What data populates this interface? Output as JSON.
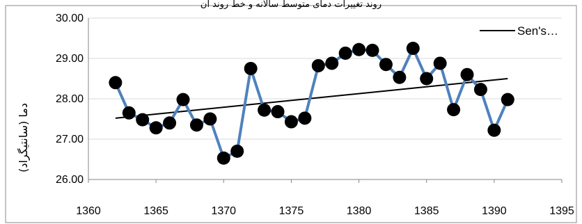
{
  "chart_data": {
    "type": "line",
    "title": "ﺭﻭﻧﺪ ﺗﻐﯿﯿﺮﺍﺕ ﺩﻣﺎی ﻣﺘﻮﺳﻂ ﺳﺎﻻﻧﻪ ﻭ ﺧﻂ ﺭﻭﻧﺪ ﺁﻥ",
    "xlabel": "",
    "ylabel": "دما (سانتیگراد)",
    "xlim": [
      1360,
      1395
    ],
    "ylim": [
      26.0,
      30.0
    ],
    "x_ticks": [
      "1360",
      "1365",
      "1370",
      "1375",
      "1380",
      "1385",
      "1390",
      "1395"
    ],
    "y_ticks": [
      "26.00",
      "27.00",
      "28.00",
      "29.00",
      "30.00"
    ],
    "grid": "horizontal",
    "legend_position": "top-right",
    "colors": {
      "series": "#4F81BD",
      "marker": "#000000",
      "trend": "#000000"
    },
    "series": [
      {
        "name": "",
        "x": [
          1362,
          1363,
          1364,
          1365,
          1366,
          1367,
          1368,
          1369,
          1370,
          1371,
          1372,
          1373,
          1374,
          1375,
          1376,
          1377,
          1378,
          1379,
          1380,
          1381,
          1382,
          1383,
          1384,
          1385,
          1386,
          1387,
          1388,
          1389,
          1390,
          1391
        ],
        "values": [
          28.4,
          27.65,
          27.48,
          27.28,
          27.4,
          27.98,
          27.35,
          27.5,
          26.53,
          26.7,
          28.75,
          27.72,
          27.68,
          27.43,
          27.52,
          28.82,
          28.88,
          29.13,
          29.22,
          29.2,
          28.85,
          28.53,
          29.25,
          28.5,
          28.88,
          27.73,
          28.6,
          28.23,
          27.22,
          27.98
        ]
      },
      {
        "name": "Sen's…",
        "type": "trend",
        "x": [
          1362,
          1391
        ],
        "values": [
          27.52,
          28.5
        ]
      }
    ]
  }
}
